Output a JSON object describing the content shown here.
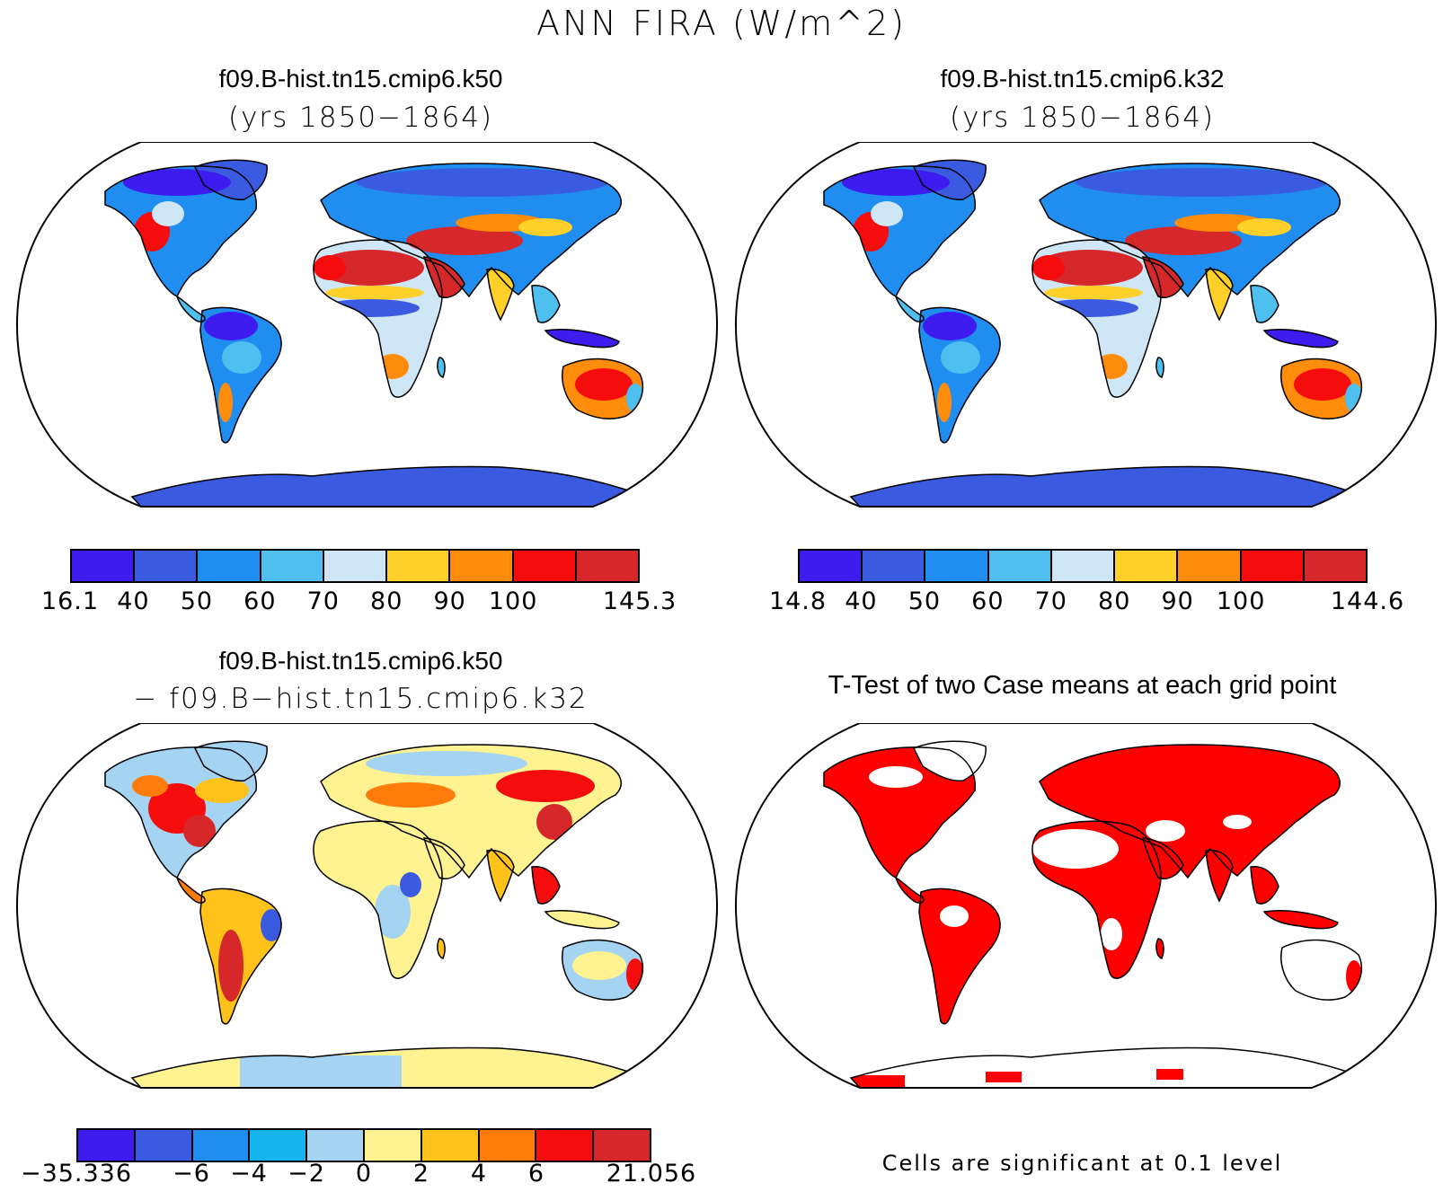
{
  "title": "ANN FIRA (W/m^2)",
  "panels": {
    "top_left": {
      "case": "f09.B-hist.tn15.cmip6.k50",
      "years": "(yrs 1850−1864)"
    },
    "top_right": {
      "case": "f09.B-hist.tn15.cmip6.k32",
      "years": "(yrs 1850−1864)"
    },
    "bottom_left": {
      "case": "f09.B-hist.tn15.cmip6.k50",
      "minus_line": "− f09.B−hist.tn15.cmip6.k32"
    },
    "bottom_right": {
      "title": "T-Test of two Case means at each grid point",
      "note": "Cells are significant at 0.1 level",
      "significant_color": "#ff0000"
    }
  },
  "colorbars": {
    "top_left": {
      "colors": [
        "#3e1cf0",
        "#3a5be0",
        "#1f8ef0",
        "#4fbff0",
        "#cfe6f7",
        "#ffd02a",
        "#ff8c0a",
        "#f50c0c",
        "#d6282a"
      ],
      "labels": [
        "16.1",
        "40",
        "50",
        "60",
        "70",
        "80",
        "90",
        "100",
        "145.3"
      ]
    },
    "top_right": {
      "colors": [
        "#3e1cf0",
        "#3a5be0",
        "#1f8ef0",
        "#4fbff0",
        "#cfe6f7",
        "#ffd02a",
        "#ff8c0a",
        "#f50c0c",
        "#d6282a"
      ],
      "labels": [
        "14.8",
        "40",
        "50",
        "60",
        "70",
        "80",
        "90",
        "100",
        "144.6"
      ]
    },
    "bottom_left": {
      "colors": [
        "#3e1cf0",
        "#3a5be0",
        "#1f8ef0",
        "#16b5ef",
        "#a5d3f2",
        "#fff291",
        "#ffc21a",
        "#ff7b0a",
        "#f50c0c",
        "#d6282a"
      ],
      "labels": [
        "−35.336",
        "−6",
        "−4",
        "−2",
        "0",
        "2",
        "4",
        "6",
        "21.056"
      ]
    }
  }
}
